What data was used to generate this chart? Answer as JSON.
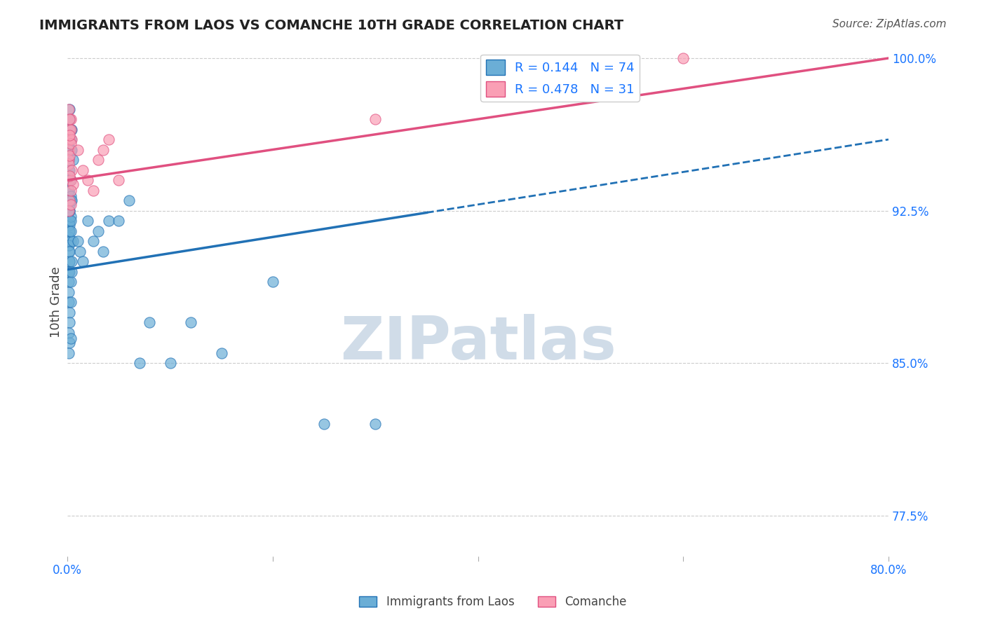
{
  "title": "IMMIGRANTS FROM LAOS VS COMANCHE 10TH GRADE CORRELATION CHART",
  "source": "Source: ZipAtlas.com",
  "xlabel_bottom": "",
  "ylabel": "10th Grade",
  "legend_labels": [
    "Immigrants from Laos",
    "Comanche"
  ],
  "r_blue": 0.144,
  "n_blue": 74,
  "r_pink": 0.478,
  "n_pink": 31,
  "xlim": [
    0.0,
    0.8
  ],
  "ylim": [
    0.755,
    1.005
  ],
  "y_ticks_right": [
    1.0,
    0.925,
    0.85,
    0.775
  ],
  "y_ticks_right_labels": [
    "100.0%",
    "92.5%",
    "85.0%",
    "77.5%"
  ],
  "x_ticks": [
    0.0,
    0.2,
    0.4,
    0.6,
    0.8
  ],
  "x_tick_labels": [
    "0.0%",
    "",
    "",
    "",
    "80.0%"
  ],
  "grid_color": "#cccccc",
  "blue_color": "#6baed6",
  "pink_color": "#fa9fb5",
  "blue_line_color": "#2171b5",
  "pink_line_color": "#e05080",
  "blue_scatter_x": [
    0.001,
    0.002,
    0.001,
    0.003,
    0.002,
    0.004,
    0.003,
    0.005,
    0.001,
    0.002,
    0.003,
    0.001,
    0.002,
    0.003,
    0.004,
    0.002,
    0.001,
    0.001,
    0.002,
    0.003,
    0.001,
    0.002,
    0.002,
    0.003,
    0.001,
    0.001,
    0.002,
    0.001,
    0.003,
    0.002,
    0.004,
    0.001,
    0.002,
    0.003,
    0.001,
    0.002,
    0.003,
    0.002,
    0.001,
    0.005,
    0.002,
    0.003,
    0.001,
    0.004,
    0.002,
    0.001,
    0.003,
    0.004,
    0.001,
    0.002,
    0.003,
    0.002,
    0.001,
    0.002,
    0.001,
    0.003,
    0.01,
    0.012,
    0.015,
    0.02,
    0.025,
    0.03,
    0.035,
    0.04,
    0.05,
    0.06,
    0.07,
    0.08,
    0.1,
    0.12,
    0.15,
    0.2,
    0.25,
    0.3
  ],
  "blue_scatter_y": [
    0.95,
    0.96,
    0.945,
    0.955,
    0.97,
    0.965,
    0.94,
    0.95,
    0.935,
    0.945,
    0.96,
    0.97,
    0.975,
    0.965,
    0.955,
    0.94,
    0.93,
    0.92,
    0.925,
    0.93,
    0.935,
    0.92,
    0.928,
    0.932,
    0.915,
    0.91,
    0.918,
    0.912,
    0.922,
    0.925,
    0.93,
    0.905,
    0.9,
    0.91,
    0.908,
    0.915,
    0.92,
    0.9,
    0.895,
    0.91,
    0.905,
    0.915,
    0.89,
    0.9,
    0.895,
    0.885,
    0.89,
    0.895,
    0.88,
    0.875,
    0.88,
    0.87,
    0.865,
    0.86,
    0.855,
    0.862,
    0.91,
    0.905,
    0.9,
    0.92,
    0.91,
    0.915,
    0.905,
    0.92,
    0.92,
    0.93,
    0.85,
    0.87,
    0.85,
    0.87,
    0.855,
    0.89,
    0.82,
    0.82
  ],
  "pink_scatter_x": [
    0.001,
    0.002,
    0.003,
    0.002,
    0.001,
    0.003,
    0.004,
    0.002,
    0.001,
    0.003,
    0.002,
    0.001,
    0.002,
    0.003,
    0.004,
    0.005,
    0.002,
    0.003,
    0.002,
    0.001,
    0.003,
    0.01,
    0.015,
    0.02,
    0.025,
    0.03,
    0.035,
    0.04,
    0.05,
    0.3,
    0.6
  ],
  "pink_scatter_y": [
    0.975,
    0.965,
    0.97,
    0.96,
    0.955,
    0.965,
    0.96,
    0.97,
    0.95,
    0.958,
    0.962,
    0.948,
    0.952,
    0.94,
    0.945,
    0.938,
    0.93,
    0.935,
    0.942,
    0.925,
    0.928,
    0.955,
    0.945,
    0.94,
    0.935,
    0.95,
    0.955,
    0.96,
    0.94,
    0.97,
    1.0
  ],
  "blue_trend_x": [
    0.0,
    0.8
  ],
  "blue_trend_y": [
    0.896,
    0.96
  ],
  "pink_trend_x": [
    0.0,
    0.8
  ],
  "pink_trend_y": [
    0.94,
    1.0
  ],
  "watermark": "ZIPatlas",
  "watermark_color": "#d0dce8",
  "background_color": "#ffffff",
  "legend_text_color": "#1a75ff",
  "title_color": "#222222"
}
